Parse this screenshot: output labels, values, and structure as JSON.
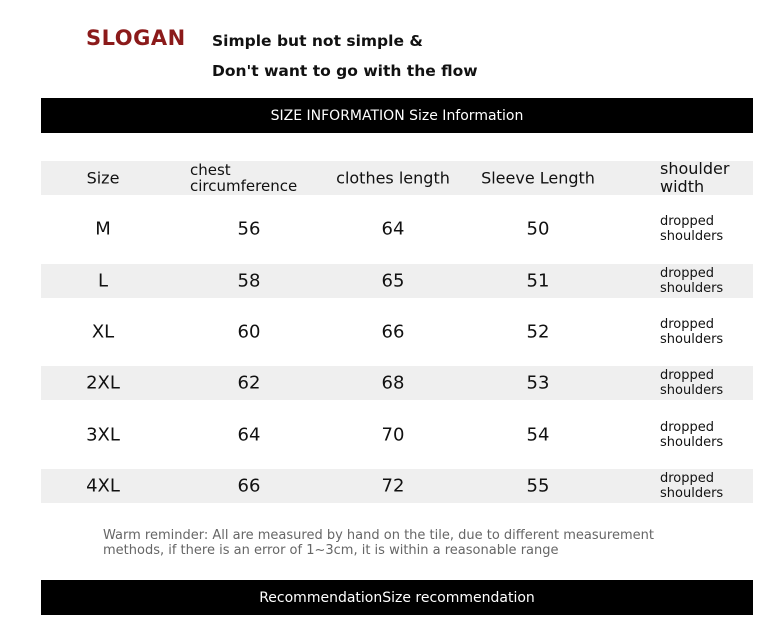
{
  "header": {
    "slogan": "SLOGAN",
    "tagline": [
      "Simple but not simple &",
      "Don't want to go with the flow"
    ]
  },
  "size_banner": "SIZE INFORMATION Size Information",
  "table": {
    "headers": [
      "Size",
      "chest circumference",
      "clothes length",
      "Sleeve Length",
      "shoulder width"
    ],
    "rows": [
      [
        "M",
        56,
        64,
        50,
        "dropped shoulders"
      ],
      [
        "L",
        58,
        65,
        51,
        "dropped shoulders"
      ],
      [
        "XL",
        60,
        66,
        52,
        "dropped shoulders"
      ],
      [
        "2XL",
        62,
        68,
        53,
        "dropped shoulders"
      ],
      [
        "3XL",
        64,
        70,
        54,
        "dropped shoulders"
      ],
      [
        "4XL",
        66,
        72,
        55,
        "dropped shoulders"
      ]
    ]
  },
  "reminder": "Warm reminder: All are measured by hand on the tile, due to different measurement methods, if there is an error of 1~3cm, it is within a reasonable range",
  "recommendation_banner": "RecommendationSize recommendation"
}
